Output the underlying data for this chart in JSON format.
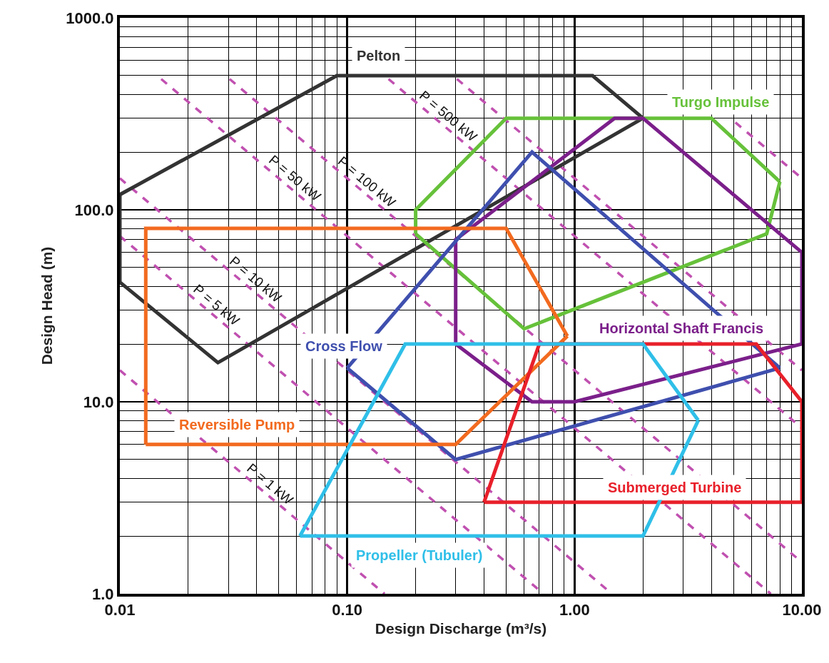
{
  "chart_data": {
    "type": "line",
    "xlabel": "Design Discharge (m³/s)",
    "ylabel": "Design Head (m)",
    "log": "xy",
    "xlim": [
      0.01,
      10
    ],
    "ylim": [
      1,
      1000
    ],
    "xticks": [
      {
        "value": 0.01,
        "label": "0.01"
      },
      {
        "value": 0.1,
        "label": "0.10"
      },
      {
        "value": 1,
        "label": "1.00"
      },
      {
        "value": 10,
        "label": "10.00"
      }
    ],
    "yticks": [
      {
        "value": 1,
        "label": "1.0"
      },
      {
        "value": 10,
        "label": "10.0"
      },
      {
        "value": 100,
        "label": "100.0"
      },
      {
        "value": 1000,
        "label": "1000.0"
      }
    ],
    "grid": true,
    "legend": false,
    "marker": "none",
    "line_style": "solid",
    "annotations": [
      {
        "text": "P = 500 kW",
        "x": 0.26,
        "y": 281
      },
      {
        "text": "P = 100 kW",
        "x": 0.114,
        "y": 128
      },
      {
        "text": "P = 50 kW",
        "x": 0.055,
        "y": 133
      },
      {
        "text": "P = 10 kW",
        "x": 0.037,
        "y": 39.5
      },
      {
        "text": "P = 5 kW",
        "x": 0.025,
        "y": 29.2
      },
      {
        "text": "P = 1 kW",
        "x": 0.043,
        "y": 3.4
      }
    ],
    "series": [
      {
        "color": "#c050b0",
        "line_style": "dashed",
        "x": [
          0.01,
          0.146
        ],
        "values": [
          14.6,
          1
        ]
      },
      {
        "color": "#c050b0",
        "line_style": "dashed",
        "x": [
          0.01,
          0.73
        ],
        "values": [
          73,
          1
        ]
      },
      {
        "color": "#c050b0",
        "line_style": "dashed",
        "x": [
          0.01,
          1.46
        ],
        "values": [
          146,
          1
        ]
      },
      {
        "color": "#c050b0",
        "line_style": "dashed",
        "x": [
          0.0152,
          7.3
        ],
        "values": [
          480,
          1
        ]
      },
      {
        "color": "#c050b0",
        "line_style": "dashed",
        "x": [
          0.0304,
          10
        ],
        "values": [
          480,
          1.46
        ]
      },
      {
        "color": "#c050b0",
        "line_style": "dashed",
        "x": [
          0.152,
          10
        ],
        "values": [
          480,
          7.3
        ]
      },
      {
        "color": "#c050b0",
        "line_style": "dashed",
        "x": [
          0.304,
          10
        ],
        "values": [
          480,
          14.6
        ]
      },
      {
        "color": "#c050b0",
        "line_style": "dashed",
        "x": [
          5.1,
          10
        ],
        "values": [
          285,
          146
        ]
      },
      {
        "name": "Pelton",
        "color": "#333333",
        "x": [
          0.01,
          0.09,
          1.2,
          2
        ],
        "values": [
          120,
          500,
          500,
          300
        ]
      },
      {
        "color": "#333333",
        "x": [
          0.01,
          0.01,
          0.027,
          2
        ],
        "values": [
          120,
          42,
          16,
          300
        ]
      },
      {
        "name": "Turgo Impulse",
        "color": "#66c13a",
        "x": [
          0.2,
          0.2,
          0.5,
          4,
          8
        ],
        "values": [
          75,
          100,
          300,
          300,
          140
        ]
      },
      {
        "color": "#66c13a",
        "x": [
          0.2,
          0.6,
          7,
          8
        ],
        "values": [
          75,
          24,
          75,
          140
        ]
      },
      {
        "name": "Horizontal Shaft Francis",
        "color": "#7b1f8a",
        "x": [
          0.3,
          0.3,
          1.5,
          2,
          10,
          10
        ],
        "values": [
          20,
          70,
          300,
          300,
          60,
          20
        ]
      },
      {
        "color": "#7b1f8a",
        "x": [
          0.3,
          0.65,
          1,
          10
        ],
        "values": [
          20,
          10,
          10,
          20
        ]
      },
      {
        "name": "Cross Flow",
        "color": "#3f4fae",
        "x": [
          0.1,
          0.65,
          8
        ],
        "values": [
          15,
          200,
          15
        ]
      },
      {
        "color": "#3f4fae",
        "x": [
          0.1,
          0.3,
          8
        ],
        "values": [
          15,
          5,
          15
        ]
      },
      {
        "name": "Reversible Pump",
        "color": "#f26a1f",
        "x": [
          0.013,
          0.013,
          0.5,
          0.93
        ],
        "values": [
          6,
          80,
          80,
          22
        ]
      },
      {
        "color": "#f26a1f",
        "x": [
          0.013,
          0.3,
          0.93
        ],
        "values": [
          6,
          6,
          22
        ]
      },
      {
        "name": "Submerged Turbine",
        "color": "#e8202a",
        "x": [
          0.4,
          0.7,
          6.3,
          10,
          10
        ],
        "values": [
          3,
          20,
          20,
          10,
          3
        ]
      },
      {
        "color": "#e8202a",
        "x": [
          0.4,
          10
        ],
        "values": [
          3,
          3
        ]
      },
      {
        "name": "Propeller (Tubuler)",
        "color": "#2fbfe8",
        "x": [
          0.062,
          0.18,
          2,
          3.5
        ],
        "values": [
          2,
          20,
          20,
          8
        ]
      },
      {
        "color": "#2fbfe8",
        "x": [
          0.062,
          2,
          3.5
        ],
        "values": [
          2,
          2,
          8
        ]
      }
    ]
  }
}
